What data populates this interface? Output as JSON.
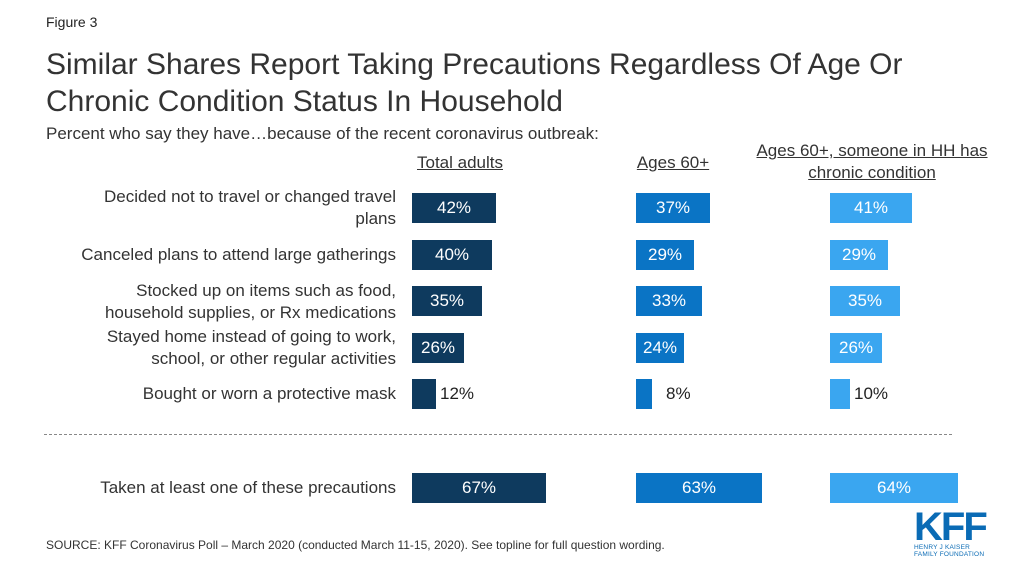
{
  "figure_label": "Figure 3",
  "chart_data": {
    "type": "bar",
    "title": "Similar Shares Report Taking Precautions Regardless Of Age Or Chronic Condition Status In Household",
    "subtitle": "Percent who say they have…because of the recent coronavirus outbreak:",
    "categories": [
      "Decided not to travel or changed travel plans",
      "Canceled plans to attend large gatherings",
      "Stocked up on items such as food, household supplies, or Rx medications",
      "Stayed home instead of going to work, school, or other regular activities",
      "Bought or worn a protective mask",
      "Taken at least one of these precautions"
    ],
    "series": [
      {
        "name": "Total adults",
        "values": [
          42,
          40,
          35,
          26,
          12,
          67
        ],
        "color": "#0e3a5e"
      },
      {
        "name": "Ages 60+",
        "values": [
          37,
          29,
          33,
          24,
          8,
          63
        ],
        "color": "#0a74c5"
      },
      {
        "name": "Ages 60+, someone in HH has chronic condition",
        "values": [
          41,
          29,
          35,
          26,
          10,
          64
        ],
        "color": "#3aa6f0"
      }
    ],
    "value_suffix": "%"
  },
  "source": "SOURCE: KFF Coronavirus Poll – March 2020 (conducted March 11-15, 2020). See topline for full question wording.",
  "logo": {
    "text": "KFF",
    "subtext": "HENRY J KAISER FAMILY FOUNDATION"
  }
}
